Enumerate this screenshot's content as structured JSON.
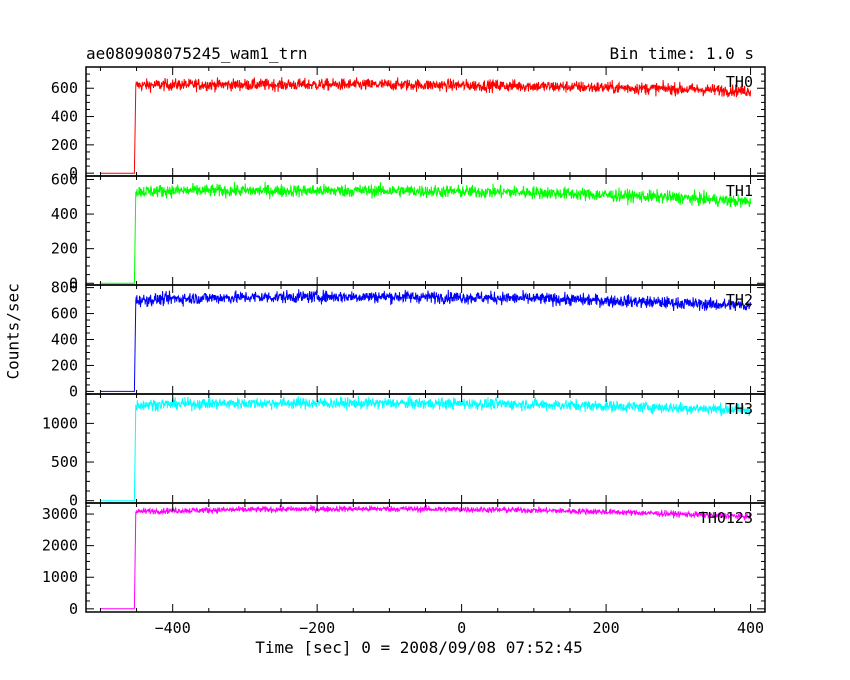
{
  "header": {
    "title": "ae080908075245_wam1_trn",
    "bin_time": "Bin time: 1.0 s"
  },
  "axes": {
    "xlabel": "Time [sec] 0 = 2008/09/08 07:52:45",
    "ylabel": "Counts/sec"
  },
  "colors": {
    "TH0": "#ff0000",
    "TH1": "#00ff00",
    "TH2": "#0000ff",
    "TH3": "#00ffff",
    "TH0123": "#ff00ff"
  },
  "chart_data": {
    "type": "line",
    "x_range": [
      -520,
      420
    ],
    "x_ticks": [
      -400,
      -200,
      0,
      200,
      400
    ],
    "x_tick_labels": [
      "−400",
      "−200",
      "0",
      "200",
      "400"
    ],
    "panels": [
      {
        "name": "TH0",
        "color": "#ff0000",
        "ylim": [
          -20,
          750
        ],
        "y_ticks": [
          0,
          200,
          400,
          600
        ],
        "y_tick_labels": [
          "0",
          "200",
          "400",
          "600"
        ],
        "series": [
          {
            "x": -500,
            "y": 0
          },
          {
            "x": -453,
            "y": 0
          },
          {
            "x": -451,
            "y": 620
          },
          {
            "x": -400,
            "y": 625
          },
          {
            "x": -300,
            "y": 625
          },
          {
            "x": -200,
            "y": 625
          },
          {
            "x": -100,
            "y": 625
          },
          {
            "x": 0,
            "y": 620
          },
          {
            "x": 100,
            "y": 615
          },
          {
            "x": 200,
            "y": 605
          },
          {
            "x": 300,
            "y": 595
          },
          {
            "x": 400,
            "y": 580
          }
        ],
        "noise": 40
      },
      {
        "name": "TH1",
        "color": "#00ff00",
        "ylim": [
          -10,
          620
        ],
        "y_ticks": [
          0,
          200,
          400,
          600
        ],
        "y_tick_labels": [
          "0",
          "200",
          "400",
          "600"
        ],
        "series": [
          {
            "x": -500,
            "y": 0
          },
          {
            "x": -453,
            "y": 0
          },
          {
            "x": -451,
            "y": 530
          },
          {
            "x": -400,
            "y": 535
          },
          {
            "x": -300,
            "y": 535
          },
          {
            "x": -200,
            "y": 535
          },
          {
            "x": -100,
            "y": 535
          },
          {
            "x": 0,
            "y": 530
          },
          {
            "x": 100,
            "y": 525
          },
          {
            "x": 200,
            "y": 510
          },
          {
            "x": 300,
            "y": 495
          },
          {
            "x": 400,
            "y": 470
          }
        ],
        "noise": 35
      },
      {
        "name": "TH2",
        "color": "#0000ff",
        "ylim": [
          -20,
          820
        ],
        "y_ticks": [
          0,
          200,
          400,
          600,
          800
        ],
        "y_tick_labels": [
          "0",
          "200",
          "400",
          "600",
          "800"
        ],
        "series": [
          {
            "x": -500,
            "y": 0
          },
          {
            "x": -453,
            "y": 0
          },
          {
            "x": -451,
            "y": 700
          },
          {
            "x": -400,
            "y": 715
          },
          {
            "x": -300,
            "y": 725
          },
          {
            "x": -200,
            "y": 730
          },
          {
            "x": -100,
            "y": 730
          },
          {
            "x": 0,
            "y": 725
          },
          {
            "x": 100,
            "y": 715
          },
          {
            "x": 200,
            "y": 700
          },
          {
            "x": 300,
            "y": 680
          },
          {
            "x": 400,
            "y": 660
          }
        ],
        "noise": 45
      },
      {
        "name": "TH3",
        "color": "#00ffff",
        "ylim": [
          -30,
          1380
        ],
        "y_ticks": [
          0,
          500,
          1000
        ],
        "y_tick_labels": [
          "0",
          "500",
          "1000"
        ],
        "series": [
          {
            "x": -500,
            "y": 0
          },
          {
            "x": -453,
            "y": 0
          },
          {
            "x": -451,
            "y": 1240
          },
          {
            "x": -400,
            "y": 1250
          },
          {
            "x": -300,
            "y": 1260
          },
          {
            "x": -200,
            "y": 1260
          },
          {
            "x": -100,
            "y": 1260
          },
          {
            "x": 0,
            "y": 1255
          },
          {
            "x": 100,
            "y": 1245
          },
          {
            "x": 200,
            "y": 1225
          },
          {
            "x": 300,
            "y": 1200
          },
          {
            "x": 400,
            "y": 1175
          }
        ],
        "noise": 70
      },
      {
        "name": "TH0123",
        "color": "#ff00ff",
        "ylim": [
          -100,
          3350
        ],
        "y_ticks": [
          0,
          1000,
          2000,
          3000
        ],
        "y_tick_labels": [
          "0",
          "1000",
          "2000",
          "3000"
        ],
        "series": [
          {
            "x": -500,
            "y": 0
          },
          {
            "x": -453,
            "y": 0
          },
          {
            "x": -451,
            "y": 3080
          },
          {
            "x": -400,
            "y": 3110
          },
          {
            "x": -300,
            "y": 3140
          },
          {
            "x": -200,
            "y": 3160
          },
          {
            "x": -100,
            "y": 3165
          },
          {
            "x": 0,
            "y": 3150
          },
          {
            "x": 100,
            "y": 3120
          },
          {
            "x": 200,
            "y": 3070
          },
          {
            "x": 300,
            "y": 3000
          },
          {
            "x": 400,
            "y": 2920
          }
        ],
        "noise": 90
      }
    ]
  }
}
